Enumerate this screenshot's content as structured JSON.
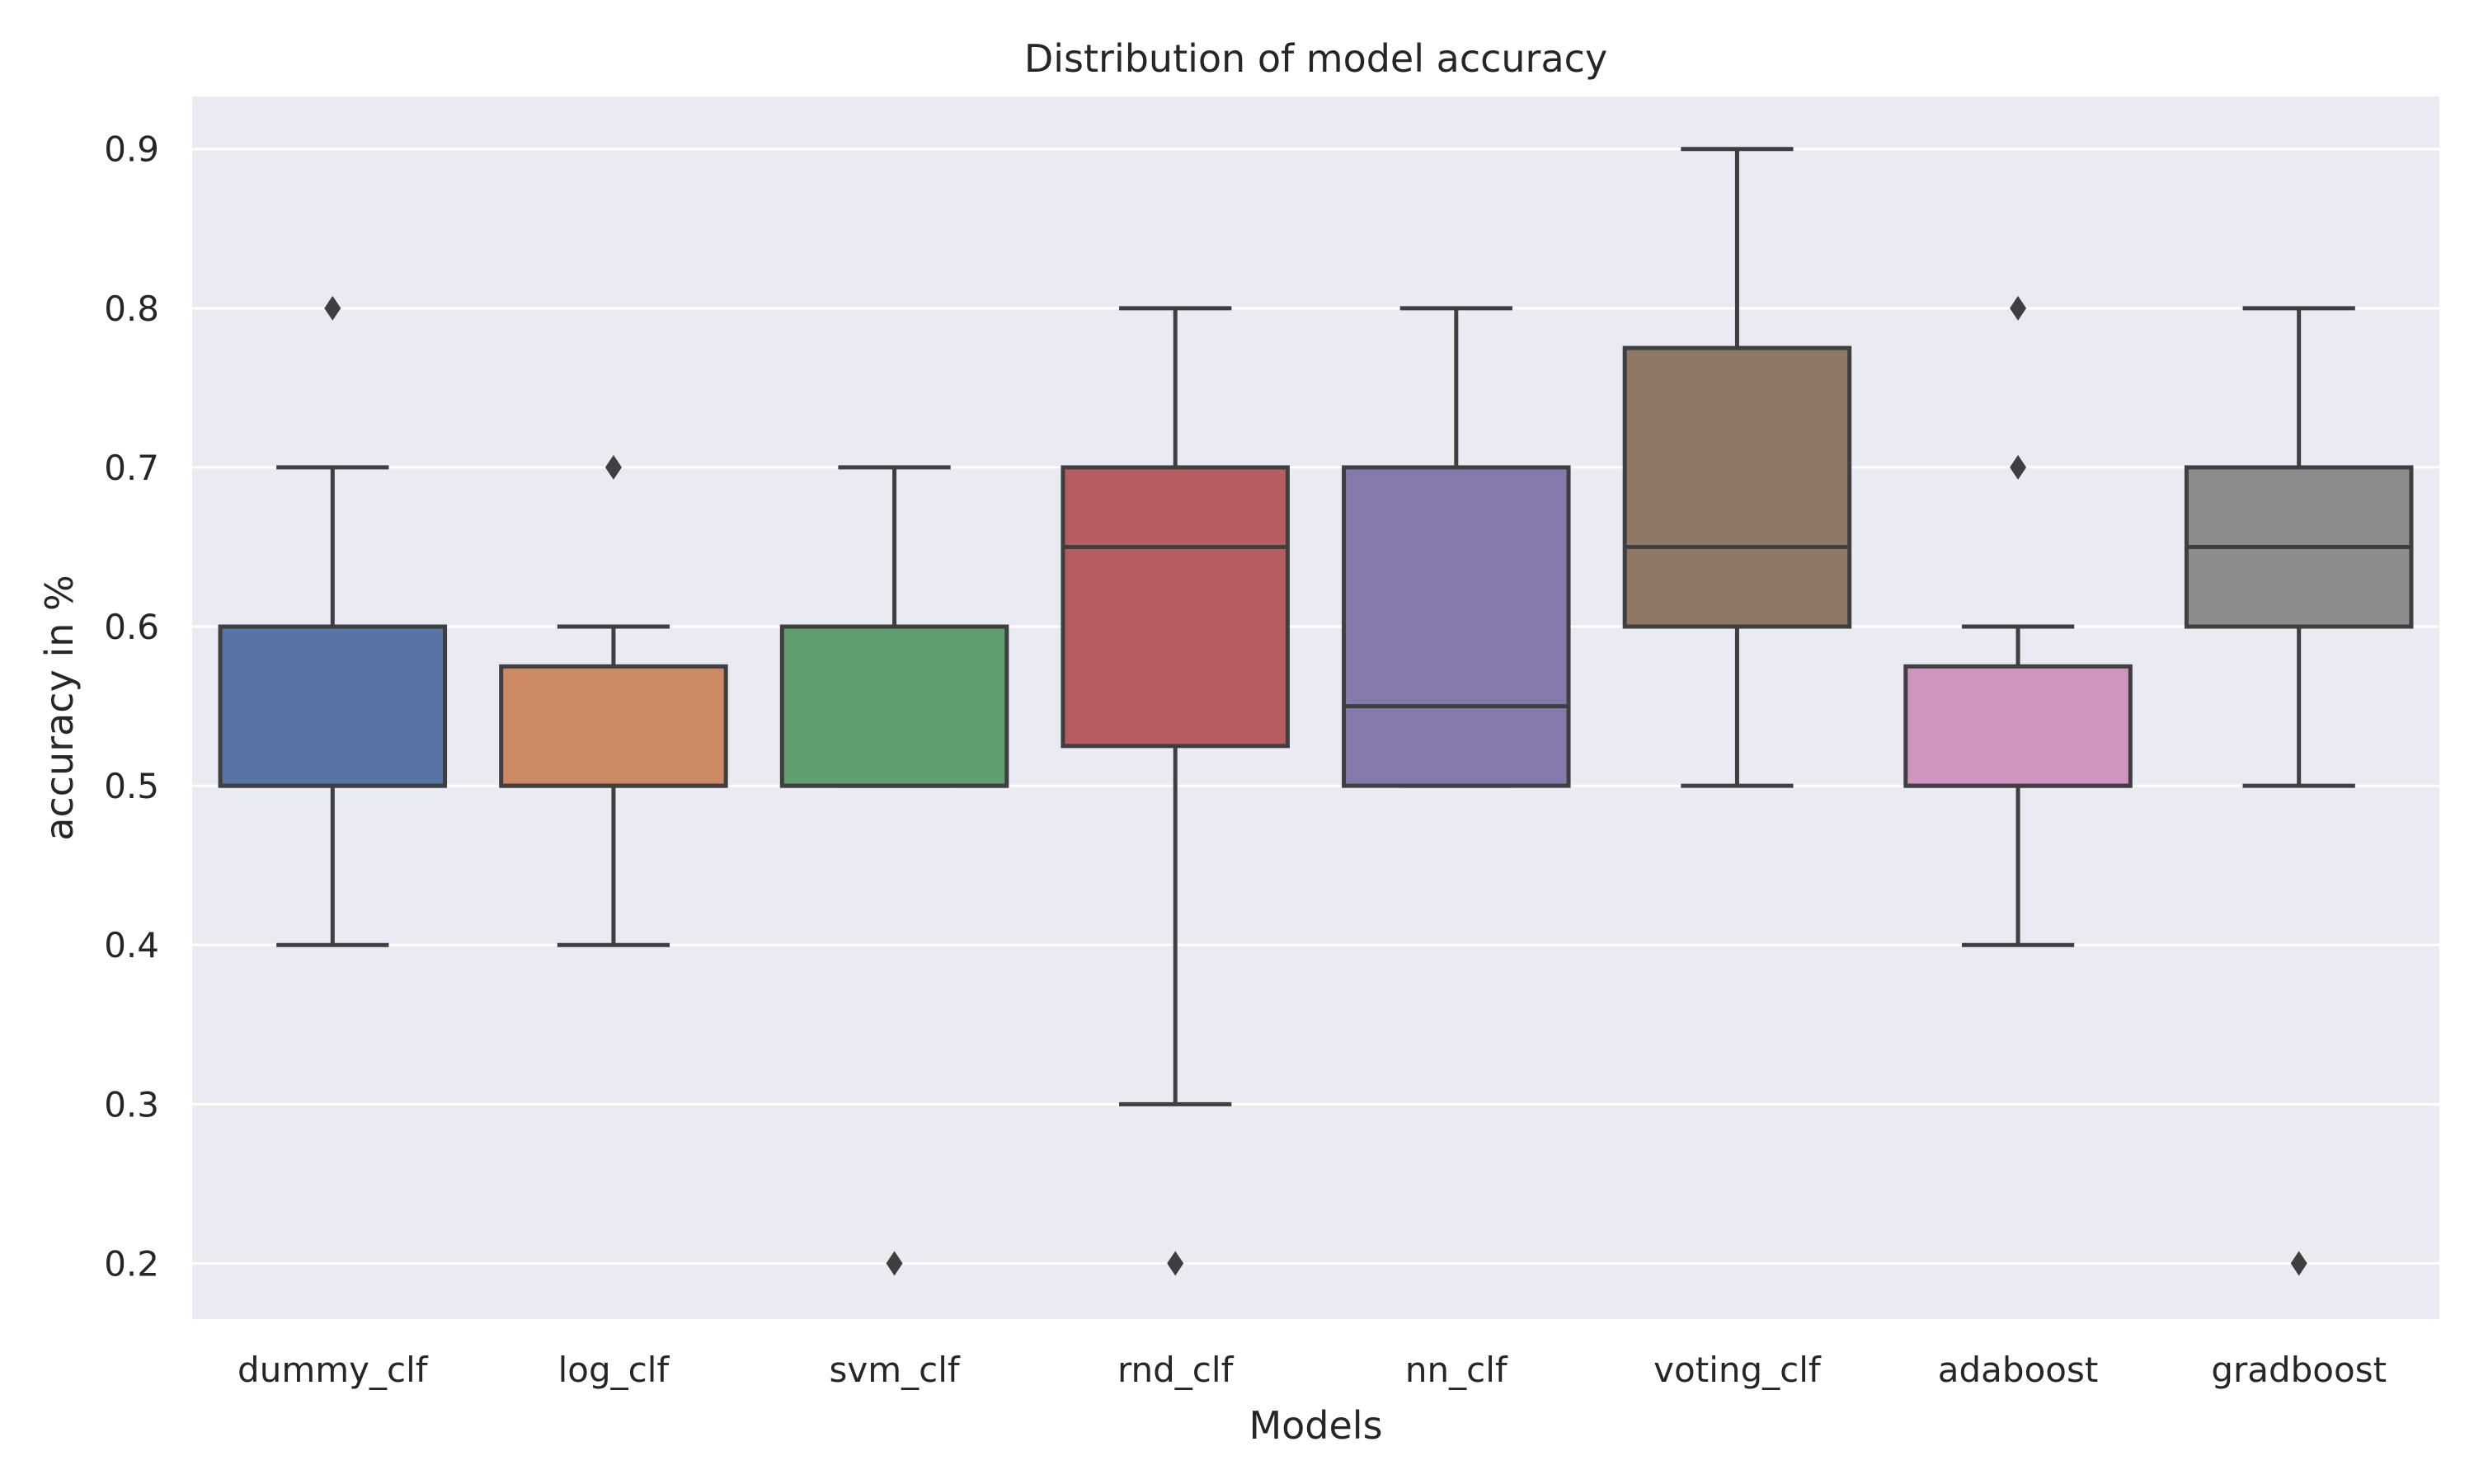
{
  "chart_data": {
    "type": "box",
    "title": "Distribution of model accuracy",
    "xlabel": "Models",
    "ylabel": "accuracy in %",
    "ylim": [
      0.165,
      0.933
    ],
    "yticks": [
      0.2,
      0.3,
      0.4,
      0.5,
      0.6,
      0.7,
      0.8,
      0.9
    ],
    "ytick_labels": [
      "0.2",
      "0.3",
      "0.4",
      "0.5",
      "0.6",
      "0.7",
      "0.8",
      "0.9"
    ],
    "grid": true,
    "background": "#eaeaf2",
    "categories": [
      "dummy_clf",
      "log_clf",
      "svm_clf",
      "rnd_clf",
      "nn_clf",
      "voting_clf",
      "adaboost",
      "gradboost"
    ],
    "boxes": [
      {
        "name": "dummy_clf",
        "whisker_low": 0.4,
        "q1": 0.5,
        "median": 0.5,
        "q3": 0.6,
        "whisker_high": 0.7,
        "outliers": [
          0.8
        ],
        "color": "#5874a4"
      },
      {
        "name": "log_clf",
        "whisker_low": 0.4,
        "q1": 0.5,
        "median": 0.5,
        "q3": 0.575,
        "whisker_high": 0.6,
        "outliers": [
          0.7
        ],
        "color": "#cc8963"
      },
      {
        "name": "svm_clf",
        "whisker_low": 0.5,
        "q1": 0.5,
        "median": 0.5,
        "q3": 0.6,
        "whisker_high": 0.7,
        "outliers": [
          0.2
        ],
        "color": "#5f9e6e"
      },
      {
        "name": "rnd_clf",
        "whisker_low": 0.3,
        "q1": 0.525,
        "median": 0.65,
        "q3": 0.7,
        "whisker_high": 0.8,
        "outliers": [
          0.2
        ],
        "color": "#b55d60"
      },
      {
        "name": "nn_clf",
        "whisker_low": 0.5,
        "q1": 0.5,
        "median": 0.55,
        "q3": 0.7,
        "whisker_high": 0.8,
        "outliers": [],
        "color": "#857aab"
      },
      {
        "name": "voting_clf",
        "whisker_low": 0.5,
        "q1": 0.6,
        "median": 0.65,
        "q3": 0.775,
        "whisker_high": 0.9,
        "outliers": [],
        "color": "#8d7866"
      },
      {
        "name": "adaboost",
        "whisker_low": 0.4,
        "q1": 0.5,
        "median": 0.5,
        "q3": 0.575,
        "whisker_high": 0.6,
        "outliers": [
          0.7,
          0.8
        ],
        "color": "#d095bf"
      },
      {
        "name": "gradboost",
        "whisker_low": 0.5,
        "q1": 0.6,
        "median": 0.65,
        "q3": 0.7,
        "whisker_high": 0.8,
        "outliers": [
          0.2
        ],
        "color": "#8c8c8c"
      }
    ],
    "line_color": "#3f3f3f"
  }
}
